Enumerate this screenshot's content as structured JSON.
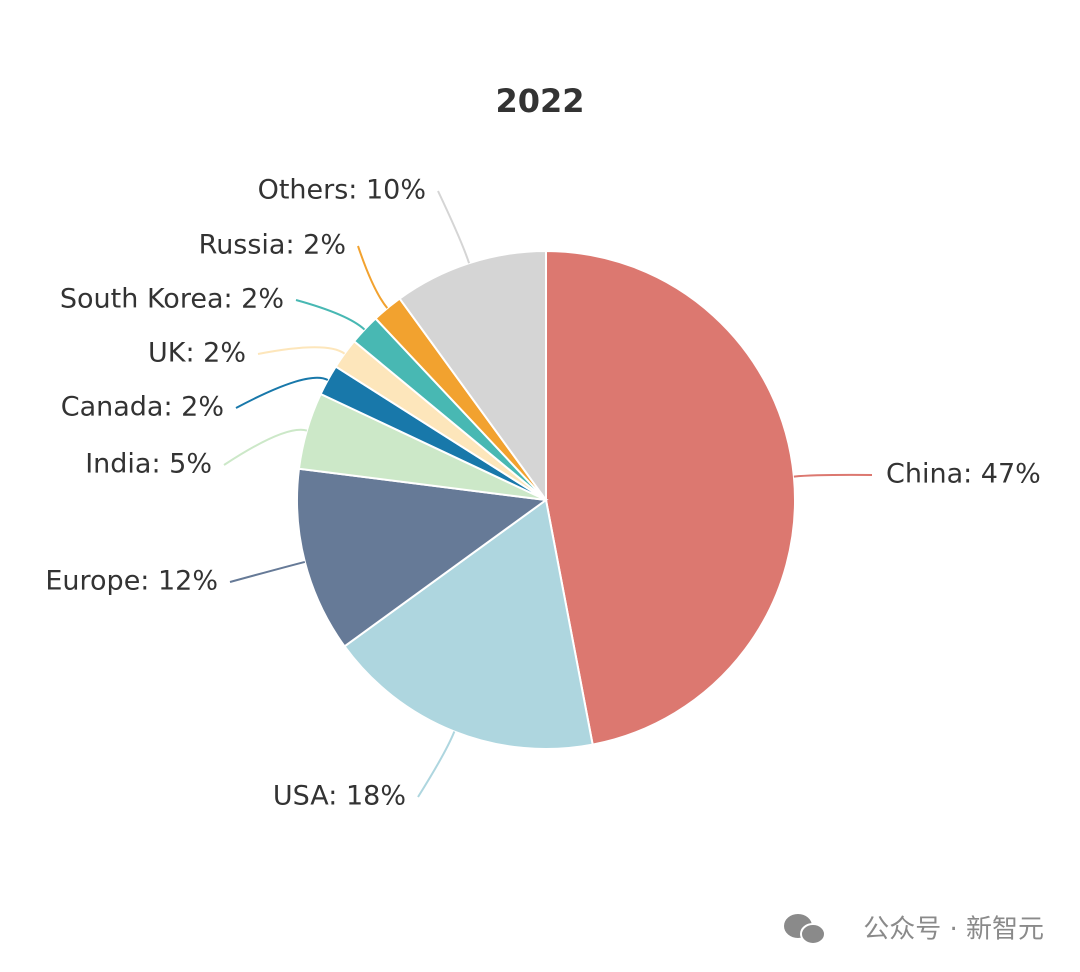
{
  "chart_data": {
    "type": "pie",
    "title": "2022",
    "categories": [
      "China",
      "USA",
      "Europe",
      "India",
      "Canada",
      "UK",
      "South Korea",
      "Russia",
      "Others"
    ],
    "values": [
      47,
      18,
      12,
      5,
      2,
      2,
      2,
      2,
      10
    ],
    "value_labels": [
      "China: 47%",
      "USA: 18%",
      "Europe: 12%",
      "India: 5%",
      "Canada: 2%",
      "UK: 2%",
      "South Korea: 2%",
      "Russia: 2%",
      "Others: 10%"
    ],
    "colors": [
      "#dc7870",
      "#aed6df",
      "#667a97",
      "#cce8c8",
      "#1878aa",
      "#fde6bb",
      "#48b8b3",
      "#f2a22f",
      "#d5d5d5"
    ]
  },
  "watermark": "公众号 · 新智元"
}
